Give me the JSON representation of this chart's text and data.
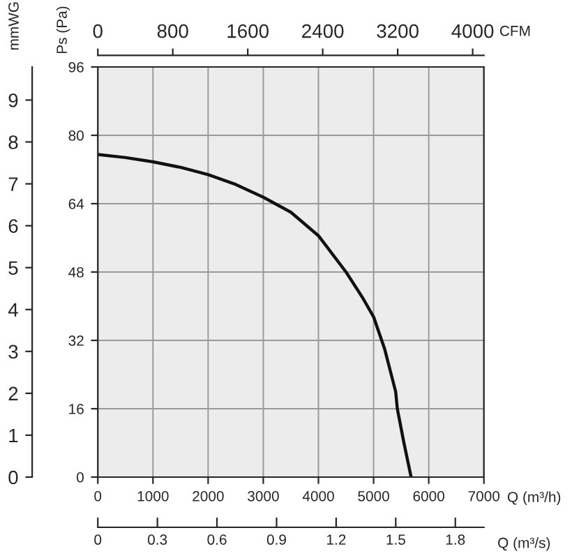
{
  "chart_data": [
    {
      "type": "line",
      "xlabel": "Q (m³/h)",
      "ylabel": "Ps (Pa)",
      "y2label": "mmWG",
      "x2label": "CFM",
      "x": [
        0,
        500,
        1000,
        1500,
        2000,
        2500,
        3000,
        3500,
        4000,
        4500,
        4800,
        5000,
        5200,
        5400,
        5430,
        5550,
        5680
      ],
      "series": [
        {
          "color": "#111111",
          "values": [
            75.5,
            74.8,
            73.8,
            72.5,
            70.8,
            68.5,
            65.5,
            62,
            56.5,
            48,
            42,
            37.5,
            30,
            20,
            16,
            8,
            0
          ]
        }
      ],
      "xlim": [
        0,
        7000
      ],
      "xticks": [
        0,
        1000,
        2000,
        3000,
        4000,
        5000,
        6000,
        7000
      ],
      "ylim": [
        0,
        96
      ],
      "yticks": [
        0,
        16,
        32,
        48,
        64,
        80,
        96
      ],
      "y2lim": [
        0,
        9.79
      ],
      "y2ticks": [
        0,
        1,
        2,
        3,
        4,
        5,
        6,
        7,
        8,
        9
      ],
      "x2lim": [
        0,
        4120
      ],
      "x2ticks": [
        0,
        800,
        1600,
        2400,
        3200,
        4000
      ],
      "grid": true,
      "marker": "none",
      "line_style": "solid"
    },
    {
      "type": "line",
      "xlabel": "Q (m³/s)",
      "xlim": [
        0,
        1.944
      ],
      "xticks": [
        0,
        0.3,
        0.6,
        0.9,
        1.2,
        1.5,
        1.8
      ],
      "ylim": [
        0,
        96
      ],
      "tick_labels": "x"
    }
  ]
}
